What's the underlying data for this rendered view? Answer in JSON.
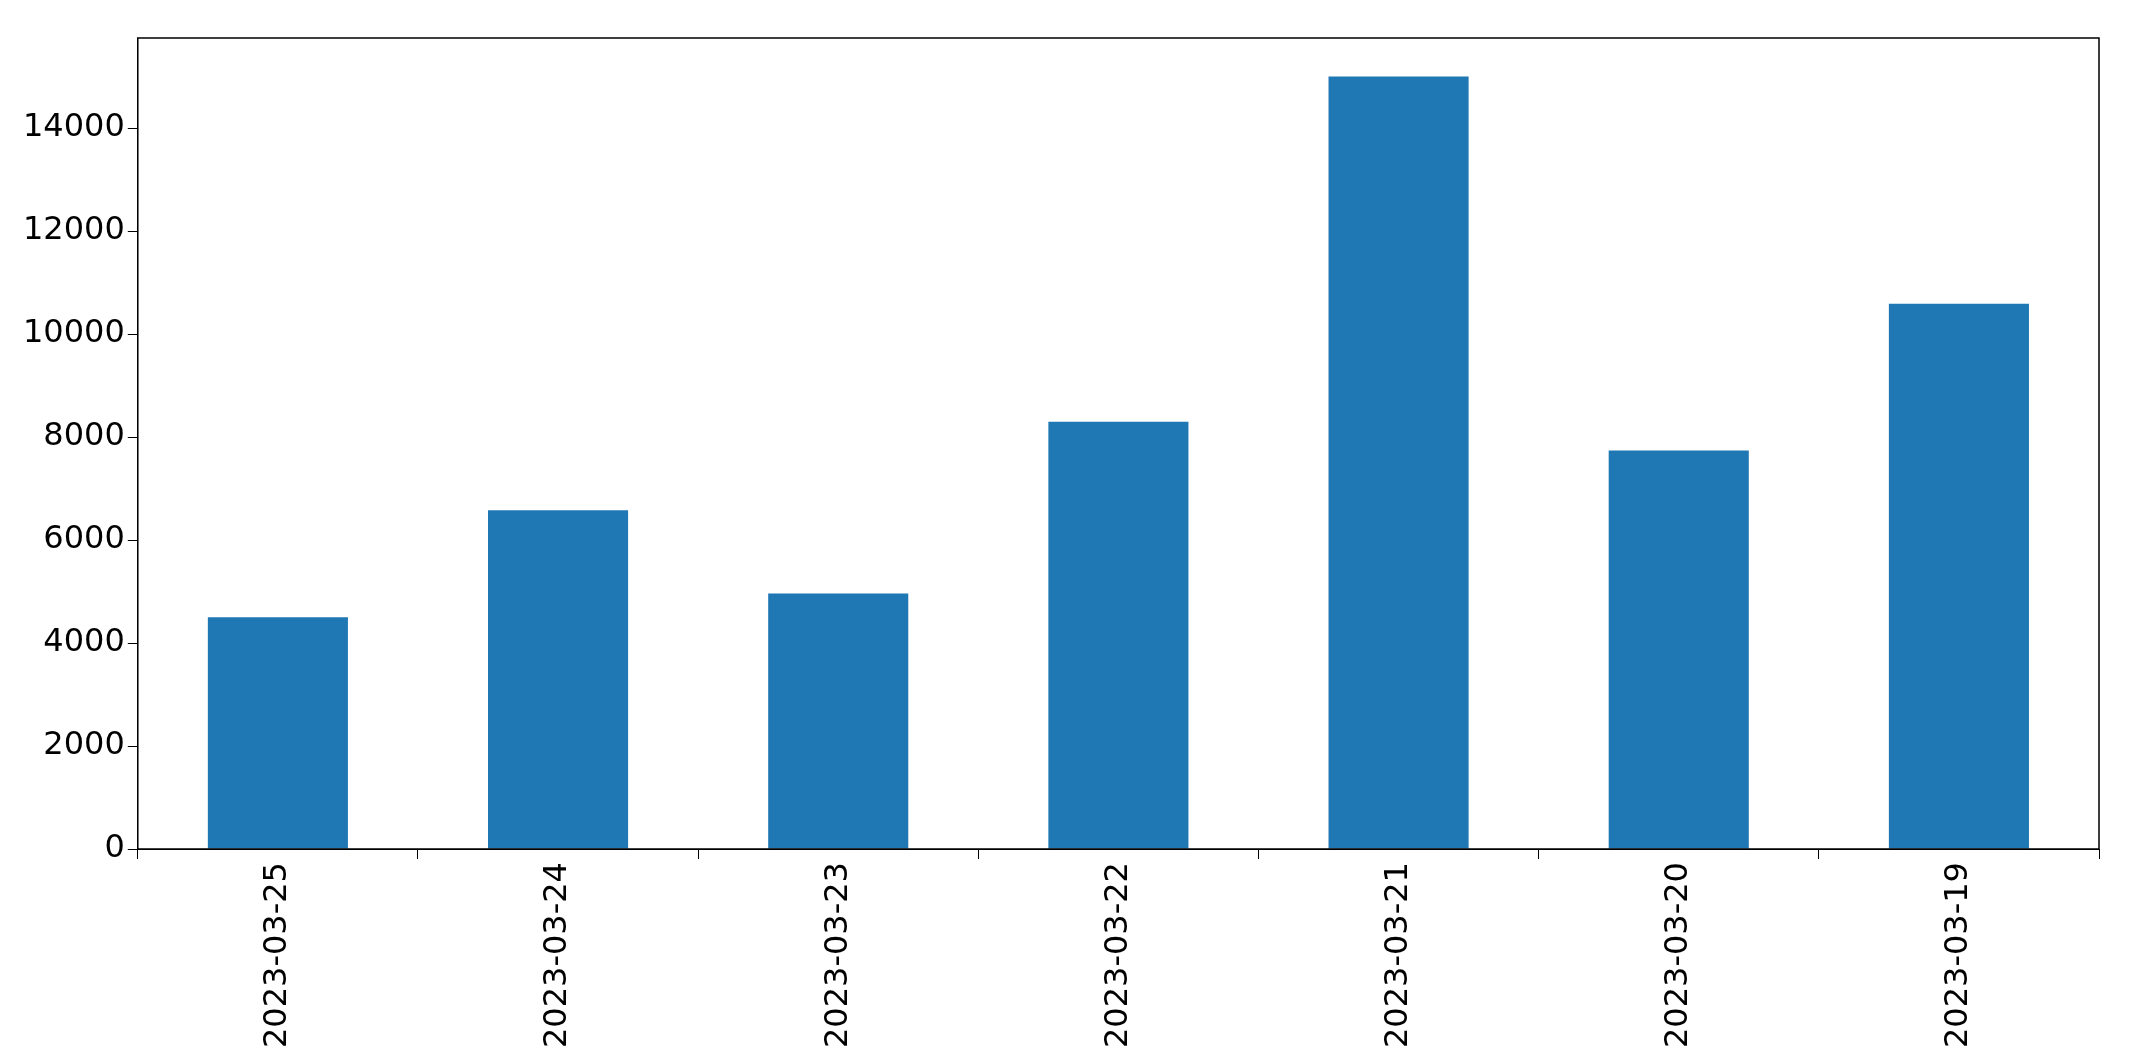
{
  "chart_data": {
    "type": "bar",
    "categories": [
      "2023-03-25",
      "2023-03-24",
      "2023-03-23",
      "2023-03-22",
      "2023-03-21",
      "2023-03-20",
      "2023-03-19"
    ],
    "values": [
      4500,
      6580,
      4960,
      8300,
      15000,
      7740,
      10590
    ],
    "color": "#1f77b4",
    "ylim": [
      0,
      15750
    ],
    "yticks": [
      0,
      2000,
      4000,
      6000,
      8000,
      10000,
      12000,
      14000
    ],
    "grid": false,
    "legend": false
  }
}
